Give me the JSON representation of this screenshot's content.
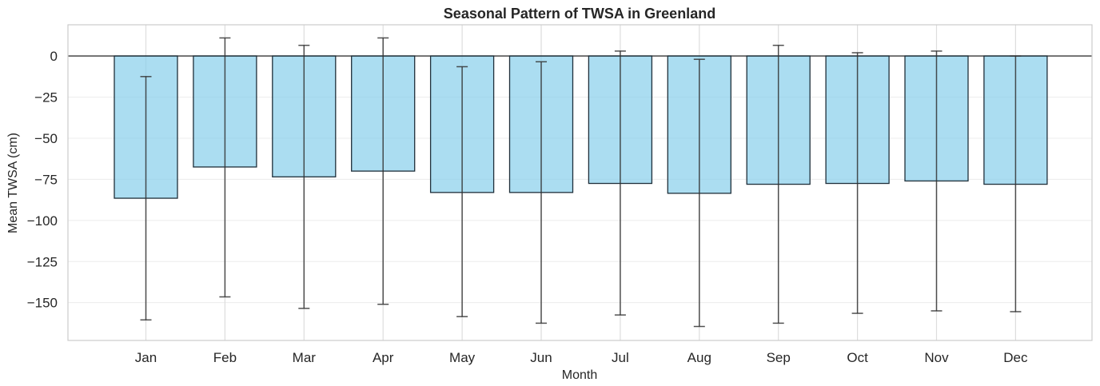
{
  "chart_data": {
    "type": "bar",
    "title": "Seasonal Pattern of TWSA in Greenland",
    "xlabel": "Month",
    "ylabel": "Mean TWSA (cm)",
    "categories": [
      "Jan",
      "Feb",
      "Mar",
      "Apr",
      "May",
      "Jun",
      "Jul",
      "Aug",
      "Sep",
      "Oct",
      "Nov",
      "Dec"
    ],
    "values": [
      -86.5,
      -67.5,
      -73.5,
      -70.0,
      -83.0,
      -83.0,
      -77.5,
      -83.5,
      -78.0,
      -77.5,
      -76.0,
      -78.0
    ],
    "error_low": [
      -160.5,
      -146.5,
      -153.5,
      -151.0,
      -158.5,
      -162.5,
      -157.5,
      -164.5,
      -162.5,
      -156.5,
      -155.0,
      -155.5
    ],
    "error_high": [
      -12.5,
      11.0,
      6.5,
      11.0,
      -6.5,
      -3.5,
      3.0,
      -2.0,
      6.5,
      2.0,
      3.0,
      0.0
    ],
    "yticks": [
      0,
      -25,
      -50,
      -75,
      -100,
      -125,
      -150
    ],
    "ytick_labels": [
      "0",
      "−25",
      "−50",
      "−75",
      "−100",
      "−125",
      "−150"
    ],
    "ylim": [
      -173,
      19
    ],
    "grid": true,
    "bar_color": "#87CEEB",
    "bar_edge_color": "#1f2f3a",
    "errorbar_color": "#333333",
    "zero_line_color": "#555555",
    "grid_color": "#dddddd"
  }
}
